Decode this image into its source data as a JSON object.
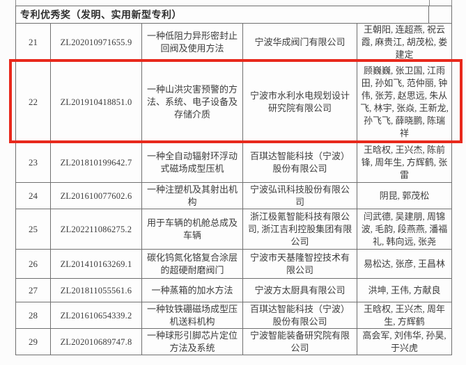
{
  "section_title": "专利优秀奖（发明、实用新型专利）",
  "highlight": {
    "highlighted_row_no": "22",
    "color": "#e8291c"
  },
  "rows": [
    {
      "no": "21",
      "patent_no": "ZL202010971655.9",
      "title": "一种低阻力异形密封止回阀及使用方法",
      "company": "宁波华成阀门有限公司",
      "inventors": "王朝阳, 连超燕, 祝云霞, 麻贵江, 胡茂松, 娄建定"
    },
    {
      "no": "22",
      "patent_no": "ZL201910418851.0",
      "title": "一种山洪灾害预警的方法、系统、电子设备及存储介质",
      "company": "宁波市水利水电规划设计研究院有限公司",
      "inventors": "顾巍巍, 张卫国, 江雨田, 孙如飞, 范仲丽, 钟伟, 张芳, 赵思远, 朱从飞, 林宇, 张焱, 王新龙, 孙飞飞, 薛晓鹏, 陈瑞祥"
    },
    {
      "no": "23",
      "patent_no": "ZL201810199642.7",
      "title": "一种全自动辐射环浮动式磁场成型压机",
      "company": "百琪达智能科技（宁波）股份有限公司",
      "inventors": "王晗权, 王兴杰, 陈前锋, 周年生, 方辉鹤, 张雷"
    },
    {
      "no": "24",
      "patent_no": "ZL201610077602.6",
      "title": "一种注塑机及其射出机构",
      "company": "宁波弘讯科技股份有限公司",
      "inventors": "阴昆, 郭茂松"
    },
    {
      "no": "25",
      "patent_no": "ZL202211086275.2",
      "title": "用于车辆的机舱总成及车辆",
      "company": "浙江极氪智能科技有限公司, 浙江吉利控股集团有限公司",
      "inventors": "闫武德, 吴建朋, 周锦波, 毛韵, 段燕燕, 潘福礼, 韩向远, 张尧"
    },
    {
      "no": "26",
      "patent_no": "ZL201410163269.1",
      "title": "碳化钨氮化铬复合涂层的超硬耐磨阀门",
      "company": "宁波市天基隆智控技术有限公司",
      "inventors": "易松达, 张彦, 王昌林"
    },
    {
      "no": "27",
      "patent_no": "ZL201811055561.6",
      "title": "一种蒸箱的加水方法",
      "company": "宁波方太厨具有限公司",
      "inventors": "洪坤, 王伟, 方献良"
    },
    {
      "no": "28",
      "patent_no": "ZL201610654339.2",
      "title": "一种钕铁硼磁场成型压机送料机构",
      "company": "百琪达智能科技（宁波）股份有限公司",
      "inventors": "王晗权, 王兴杰, 周年生, 方辉鹤"
    },
    {
      "no": "29",
      "patent_no": "ZL202010689747.8",
      "title": "一种球形引脚芯片定位方法及系统",
      "company": "宁波智能装备研究院有限公司",
      "inventors": "高会军, 刘伟华, 孙昊, 于兴虎"
    }
  ]
}
